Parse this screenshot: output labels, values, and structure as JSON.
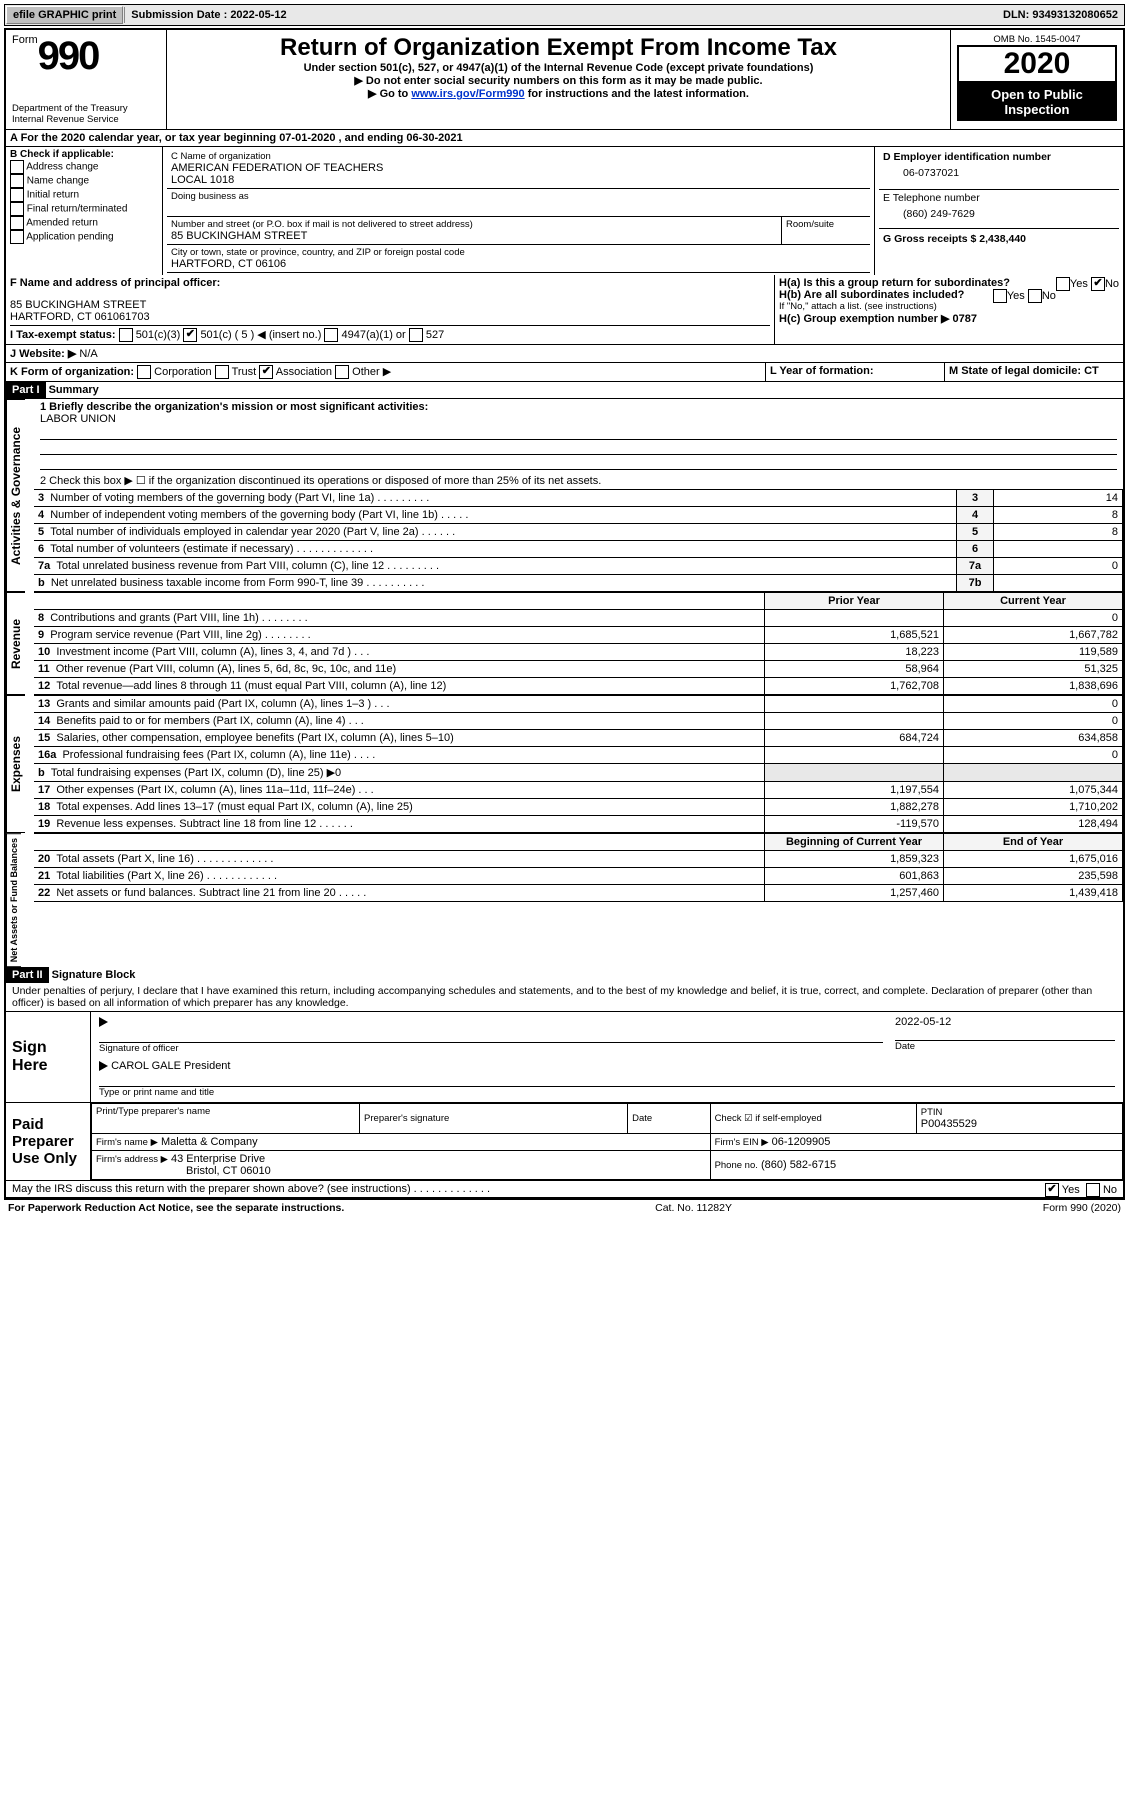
{
  "topbar": {
    "efile": "efile GRAPHIC print",
    "subdate_label": "Submission Date : 2022-05-12",
    "dln": "DLN: 93493132080652"
  },
  "header": {
    "form_word": "Form",
    "form_num": "990",
    "dept1": "Department of the Treasury",
    "dept2": "Internal Revenue Service",
    "title": "Return of Organization Exempt From Income Tax",
    "sub1": "Under section 501(c), 527, or 4947(a)(1) of the Internal Revenue Code (except private foundations)",
    "sub2": "▶ Do not enter social security numbers on this form as it may be made public.",
    "sub3a": "▶ Go to ",
    "sub3link": "www.irs.gov/Form990",
    "sub3b": " for instructions and the latest information.",
    "omb_label": "OMB No. 1545-0047",
    "year": "2020",
    "pub1": "Open to Public",
    "pub2": "Inspection"
  },
  "A": {
    "line": "A For the 2020 calendar year, or tax year beginning 07-01-2020   , and ending 06-30-2021"
  },
  "B": {
    "label": "B Check if applicable:",
    "opts": [
      "Address change",
      "Name change",
      "Initial return",
      "Final return/terminated",
      "Amended return",
      "Application pending"
    ]
  },
  "C": {
    "name_label": "C Name of organization",
    "name1": "AMERICAN FEDERATION OF TEACHERS",
    "name2": "LOCAL 1018",
    "dba_label": "Doing business as",
    "street_label": "Number and street (or P.O. box if mail is not delivered to street address)",
    "street": "85 BUCKINGHAM STREET",
    "room_label": "Room/suite",
    "city_label": "City or town, state or province, country, and ZIP or foreign postal code",
    "city": "HARTFORD, CT  06106"
  },
  "D": {
    "label": "D Employer identification number",
    "value": "06-0737021"
  },
  "E": {
    "label": "E Telephone number",
    "value": "(860) 249-7629"
  },
  "G": {
    "label": "G Gross receipts $ 2,438,440"
  },
  "F": {
    "label": "F Name and address of principal officer:",
    "addr1": "85 BUCKINGHAM STREET",
    "addr2": "HARTFORD, CT  061061703"
  },
  "H": {
    "ha": "H(a)  Is this a group return for subordinates?",
    "hb": "H(b)  Are all subordinates included?",
    "hb_note": "If \"No,\" attach a list. (see instructions)",
    "hc": "H(c)  Group exemption number ▶   0787",
    "yes": "Yes",
    "no": "No"
  },
  "I": {
    "label": "I  Tax-exempt status:",
    "c3": "501(c)(3)",
    "c5": "501(c) ( 5 )",
    "insert": "◀ (insert no.)",
    "a1": "4947(a)(1) or",
    "s527": "527"
  },
  "J": {
    "label": "J  Website: ▶",
    "value": "N/A"
  },
  "K": {
    "label": "K Form of organization:",
    "opts": [
      "Corporation",
      "Trust",
      "Association",
      "Other ▶"
    ]
  },
  "L": {
    "label": "L Year of formation:"
  },
  "M": {
    "label": "M State of legal domicile: CT"
  },
  "part1": {
    "bar": "Part I",
    "title": "Summary",
    "q1label": "1  Briefly describe the organization's mission or most significant activities:",
    "q1val": "LABOR UNION",
    "q2": "2    Check this box ▶ ☐  if the organization discontinued its operations or disposed of more than 25% of its net assets.",
    "rows_ag": [
      {
        "n": "3",
        "d": "Number of voting members of the governing body (Part VI, line 1a) . . . . . . . . .",
        "k": "3",
        "v": "14"
      },
      {
        "n": "4",
        "d": "Number of independent voting members of the governing body (Part VI, line 1b) . . . . .",
        "k": "4",
        "v": "8"
      },
      {
        "n": "5",
        "d": "Total number of individuals employed in calendar year 2020 (Part V, line 2a) . . . . . .",
        "k": "5",
        "v": "8"
      },
      {
        "n": "6",
        "d": "Total number of volunteers (estimate if necessary) . . . . . . . . . . . . .",
        "k": "6",
        "v": ""
      },
      {
        "n": "7a",
        "d": "Total unrelated business revenue from Part VIII, column (C), line 12 . . . . . . . . .",
        "k": "7a",
        "v": "0"
      },
      {
        "n": "b",
        "d": "Net unrelated business taxable income from Form 990-T, line 39 . . . . . . . . . .",
        "k": "7b",
        "v": ""
      }
    ],
    "colhead_prior": "Prior Year",
    "colhead_curr": "Current Year",
    "rev_rows": [
      {
        "n": "8",
        "d": "Contributions and grants (Part VIII, line 1h) . . . . . . . .",
        "p": "",
        "c": "0"
      },
      {
        "n": "9",
        "d": "Program service revenue (Part VIII, line 2g) . . . . . . . .",
        "p": "1,685,521",
        "c": "1,667,782"
      },
      {
        "n": "10",
        "d": "Investment income (Part VIII, column (A), lines 3, 4, and 7d ) . . .",
        "p": "18,223",
        "c": "119,589"
      },
      {
        "n": "11",
        "d": "Other revenue (Part VIII, column (A), lines 5, 6d, 8c, 9c, 10c, and 11e)",
        "p": "58,964",
        "c": "51,325"
      },
      {
        "n": "12",
        "d": "Total revenue—add lines 8 through 11 (must equal Part VIII, column (A), line 12)",
        "p": "1,762,708",
        "c": "1,838,696"
      }
    ],
    "exp_rows": [
      {
        "n": "13",
        "d": "Grants and similar amounts paid (Part IX, column (A), lines 1–3 ) . . .",
        "p": "",
        "c": "0"
      },
      {
        "n": "14",
        "d": "Benefits paid to or for members (Part IX, column (A), line 4) . . .",
        "p": "",
        "c": "0"
      },
      {
        "n": "15",
        "d": "Salaries, other compensation, employee benefits (Part IX, column (A), lines 5–10)",
        "p": "684,724",
        "c": "634,858"
      },
      {
        "n": "16a",
        "d": "Professional fundraising fees (Part IX, column (A), line 11e) . . . .",
        "p": "",
        "c": "0"
      },
      {
        "n": "b",
        "d": "Total fundraising expenses (Part IX, column (D), line 25) ▶0",
        "p": "GRAY",
        "c": "GRAY"
      },
      {
        "n": "17",
        "d": "Other expenses (Part IX, column (A), lines 11a–11d, 11f–24e) . . .",
        "p": "1,197,554",
        "c": "1,075,344"
      },
      {
        "n": "18",
        "d": "Total expenses. Add lines 13–17 (must equal Part IX, column (A), line 25)",
        "p": "1,882,278",
        "c": "1,710,202"
      },
      {
        "n": "19",
        "d": "Revenue less expenses. Subtract line 18 from line 12 . . . . . .",
        "p": "-119,570",
        "c": "128,494"
      }
    ],
    "colhead_beg": "Beginning of Current Year",
    "colhead_end": "End of Year",
    "na_rows": [
      {
        "n": "20",
        "d": "Total assets (Part X, line 16) . . . . . . . . . . . . .",
        "p": "1,859,323",
        "c": "1,675,016"
      },
      {
        "n": "21",
        "d": "Total liabilities (Part X, line 26) . . . . . . . . . . . .",
        "p": "601,863",
        "c": "235,598"
      },
      {
        "n": "22",
        "d": "Net assets or fund balances. Subtract line 21 from line 20 . . . . .",
        "p": "1,257,460",
        "c": "1,439,418"
      }
    ],
    "vlabels": {
      "ag": "Activities & Governance",
      "rev": "Revenue",
      "exp": "Expenses",
      "na": "Net Assets or Fund Balances"
    }
  },
  "part2": {
    "bar": "Part II",
    "title": "Signature Block",
    "decl": "Under penalties of perjury, I declare that I have examined this return, including accompanying schedules and statements, and to the best of my knowledge and belief, it is true, correct, and complete. Declaration of preparer (other than officer) is based on all information of which preparer has any knowledge.",
    "sign_here": "Sign Here",
    "sig_of_officer": "Signature of officer",
    "date": "Date",
    "date_val": "2022-05-12",
    "name_title": "CAROL GALE  President",
    "name_title_label": "Type or print name and title",
    "paid": "Paid Preparer Use Only",
    "pt_name_label": "Print/Type preparer's name",
    "prep_sig_label": "Preparer's signature",
    "check_self": "Check ☑ if self-employed",
    "ptin_label": "PTIN",
    "ptin": "P00435529",
    "firm_name_label": "Firm's name    ▶",
    "firm_name": "Maletta & Company",
    "firm_ein_label": "Firm's EIN ▶",
    "firm_ein": "06-1209905",
    "firm_addr_label": "Firm's address ▶",
    "firm_addr1": "43 Enterprise Drive",
    "firm_addr2": "Bristol, CT  06010",
    "phone_label": "Phone no.",
    "phone": "(860) 582-6715",
    "may_discuss": "May the IRS discuss this return with the preparer shown above? (see instructions) . . . . . . . . . . . . .",
    "yes": "Yes",
    "no": "No"
  },
  "footer": {
    "left": "For Paperwork Reduction Act Notice, see the separate instructions.",
    "mid": "Cat. No. 11282Y",
    "right": "Form 990 (2020)"
  }
}
